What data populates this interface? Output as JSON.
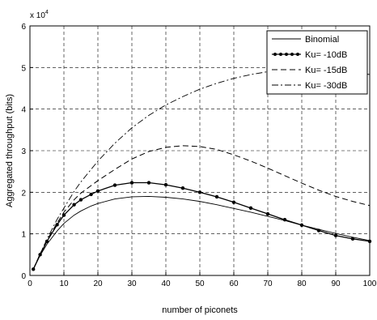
{
  "chart_data": {
    "type": "line",
    "xlabel": "number of piconets",
    "ylabel": "Aggregated throughput (bits)",
    "multiplier_label": "x 10",
    "multiplier_exp": "4",
    "xlim": [
      0,
      100
    ],
    "ylim": [
      0,
      6
    ],
    "xticks": [
      0,
      10,
      20,
      30,
      40,
      50,
      60,
      70,
      80,
      90,
      100
    ],
    "yticks": [
      0,
      1,
      2,
      3,
      4,
      5,
      6
    ],
    "grid": true,
    "legend_position": "top-right",
    "series": [
      {
        "name": "Binomial",
        "style": "solid-thin",
        "color": "#000000",
        "x": [
          1,
          3,
          5,
          8,
          10,
          13,
          15,
          18,
          20,
          25,
          30,
          35,
          40,
          45,
          50,
          55,
          60,
          65,
          70,
          75,
          80,
          85,
          90,
          95,
          100
        ],
        "y": [
          0.15,
          0.48,
          0.75,
          1.07,
          1.25,
          1.45,
          1.55,
          1.67,
          1.73,
          1.84,
          1.89,
          1.9,
          1.88,
          1.84,
          1.78,
          1.7,
          1.61,
          1.52,
          1.42,
          1.32,
          1.21,
          1.11,
          1.01,
          0.92,
          0.84
        ]
      },
      {
        "name": "Ku= -10dB",
        "style": "solid-dots",
        "color": "#000000",
        "x": [
          1,
          3,
          5,
          8,
          10,
          13,
          15,
          18,
          20,
          25,
          30,
          35,
          40,
          45,
          50,
          55,
          60,
          65,
          70,
          75,
          80,
          85,
          90,
          95,
          100
        ],
        "y": [
          0.15,
          0.5,
          0.82,
          1.22,
          1.45,
          1.7,
          1.82,
          1.95,
          2.03,
          2.17,
          2.23,
          2.23,
          2.18,
          2.1,
          2.0,
          1.89,
          1.76,
          1.62,
          1.48,
          1.34,
          1.21,
          1.08,
          0.96,
          0.88,
          0.82
        ]
      },
      {
        "name": "Ku= -15dB",
        "style": "dashed",
        "color": "#000000",
        "x": [
          1,
          3,
          5,
          8,
          10,
          13,
          15,
          18,
          20,
          25,
          30,
          35,
          40,
          45,
          50,
          55,
          60,
          65,
          70,
          75,
          80,
          85,
          90,
          95,
          100
        ],
        "y": [
          0.15,
          0.52,
          0.85,
          1.26,
          1.52,
          1.82,
          1.98,
          2.16,
          2.28,
          2.55,
          2.8,
          2.98,
          3.08,
          3.12,
          3.1,
          3.03,
          2.9,
          2.75,
          2.58,
          2.4,
          2.22,
          2.05,
          1.9,
          1.78,
          1.68
        ]
      },
      {
        "name": "Ku= -30dB",
        "style": "dashdot",
        "color": "#000000",
        "x": [
          1,
          3,
          5,
          8,
          10,
          13,
          15,
          18,
          20,
          25,
          30,
          35,
          40,
          45,
          50,
          55,
          60,
          65,
          70,
          75,
          80,
          85,
          90,
          95,
          100
        ],
        "y": [
          0.15,
          0.52,
          0.87,
          1.35,
          1.62,
          2.02,
          2.25,
          2.55,
          2.75,
          3.18,
          3.55,
          3.85,
          4.1,
          4.3,
          4.48,
          4.62,
          4.74,
          4.83,
          4.9,
          4.95,
          4.97,
          4.98,
          4.95,
          4.9,
          4.83
        ]
      }
    ]
  }
}
